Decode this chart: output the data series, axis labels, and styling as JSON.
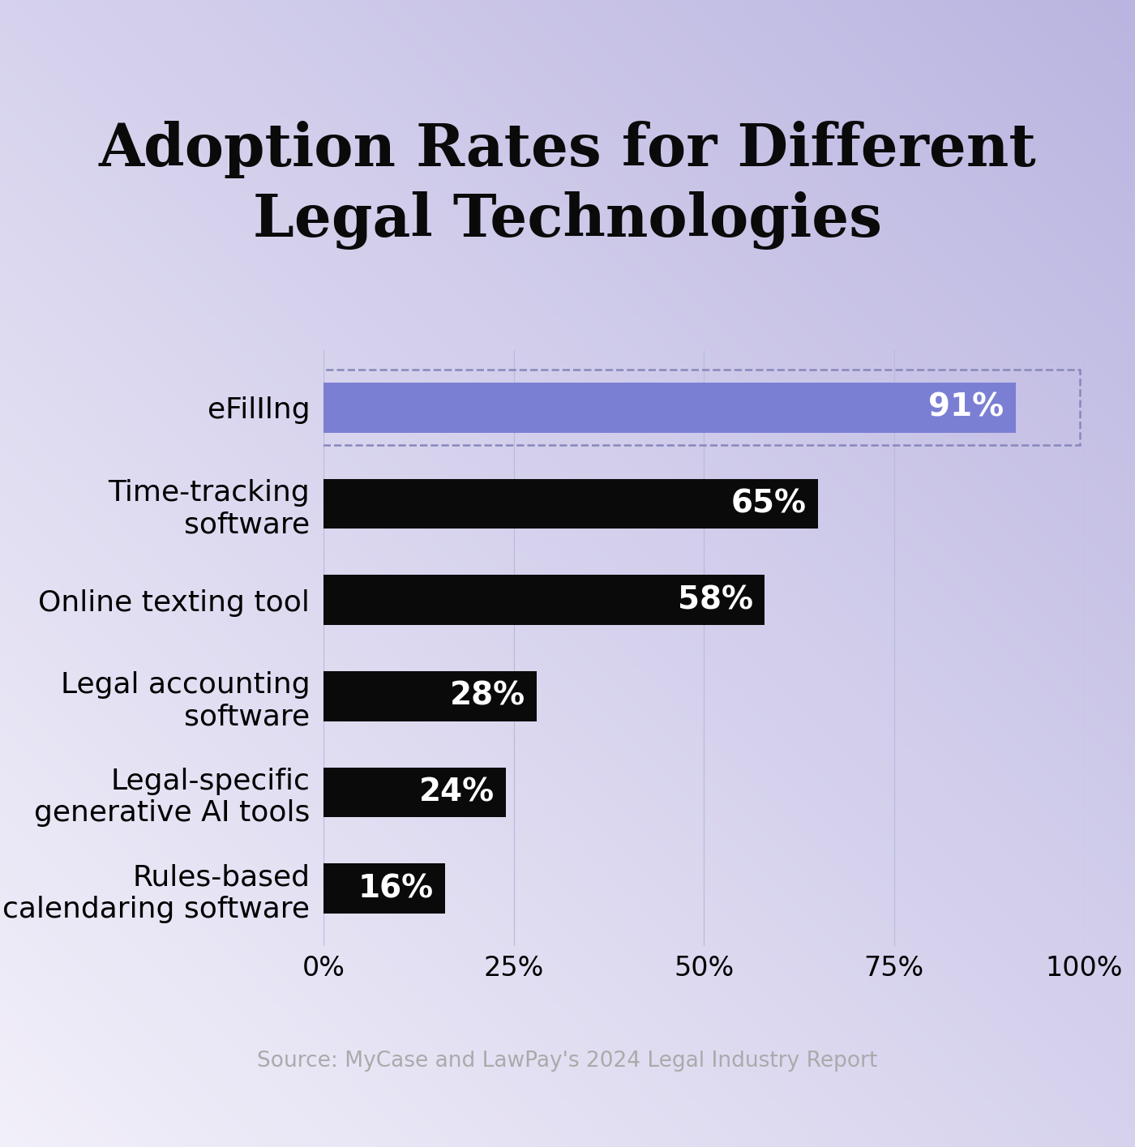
{
  "title": "Adoption Rates for Different\nLegal Technologies",
  "categories": [
    "eFilIlng",
    "Time-tracking\nsoftware",
    "Online texting tool",
    "Legal accounting\nsoftware",
    "Legal-specific\ngenerative AI tools",
    "Rules-based\ncalendaring software"
  ],
  "values": [
    91,
    65,
    58,
    28,
    24,
    16
  ],
  "bar_colors": [
    "#7B7FD4",
    "#0a0a0a",
    "#0a0a0a",
    "#0a0a0a",
    "#0a0a0a",
    "#0a0a0a"
  ],
  "label_color": "#ffffff",
  "title_fontsize": 52,
  "bar_label_fontsize": 28,
  "tick_label_fontsize": 24,
  "ytick_fontsize": 26,
  "source_text": "Source: MyCase and LawPay's 2024 Legal Industry Report",
  "source_fontsize": 19,
  "xlim": [
    0,
    100
  ],
  "xticks": [
    0,
    25,
    50,
    75,
    100
  ],
  "xtick_labels": [
    "0%",
    "25%",
    "50%",
    "75%",
    "100%"
  ],
  "dashed_box_color": "#8888bb",
  "grid_color": "#bbbbdd"
}
